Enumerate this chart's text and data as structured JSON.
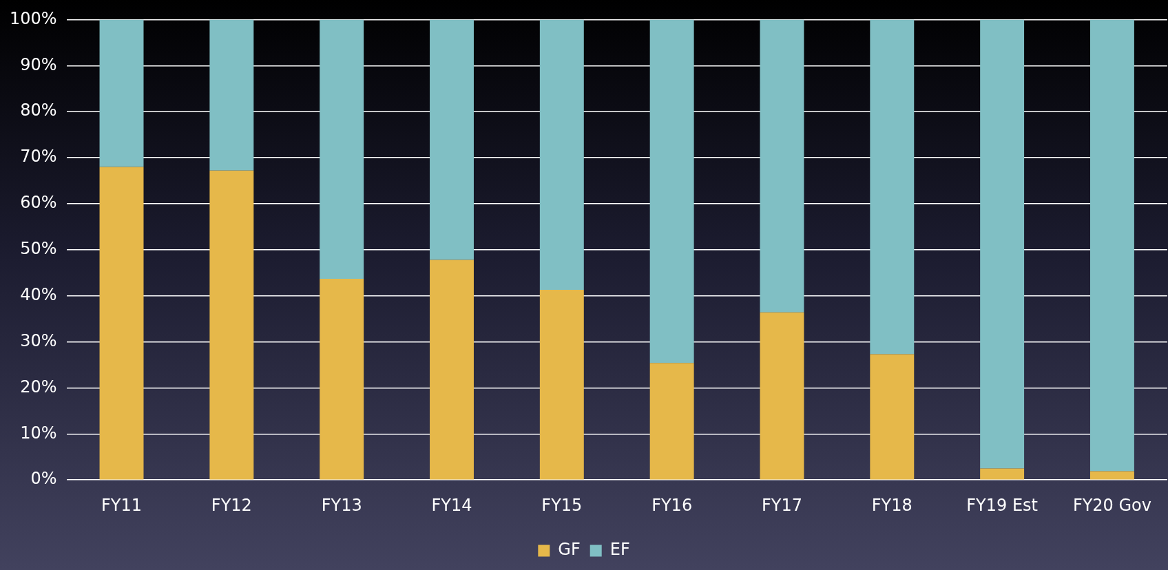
{
  "chart_data": {
    "type": "bar",
    "stacked": true,
    "categories": [
      "FY11",
      "FY12",
      "FY13",
      "FY14",
      "FY15",
      "FY16",
      "FY17",
      "FY18",
      "FY19 Est",
      "FY20 Gov"
    ],
    "series": [
      {
        "name": "GF",
        "color": "#e6b84a",
        "values": [
          68,
          67.2,
          43.7,
          47.8,
          41.3,
          25.4,
          36.4,
          27.3,
          2.5,
          1.9
        ]
      },
      {
        "name": "EF",
        "color": "#80bfc4",
        "values": [
          32,
          32.8,
          56.3,
          52.2,
          58.7,
          74.6,
          63.6,
          72.7,
          97.5,
          98.1
        ]
      }
    ],
    "ylim": [
      0,
      100
    ],
    "yticks": [
      {
        "value": 0,
        "label": "0%"
      },
      {
        "value": 10,
        "label": "10%"
      },
      {
        "value": 20,
        "label": "20%"
      },
      {
        "value": 30,
        "label": "30%"
      },
      {
        "value": 40,
        "label": "40%"
      },
      {
        "value": 50,
        "label": "50%"
      },
      {
        "value": 60,
        "label": "60%"
      },
      {
        "value": 70,
        "label": "70%"
      },
      {
        "value": 80,
        "label": "80%"
      },
      {
        "value": 90,
        "label": "90%"
      },
      {
        "value": 100,
        "label": "100%"
      }
    ],
    "grid": "y",
    "legend": "bottom"
  }
}
